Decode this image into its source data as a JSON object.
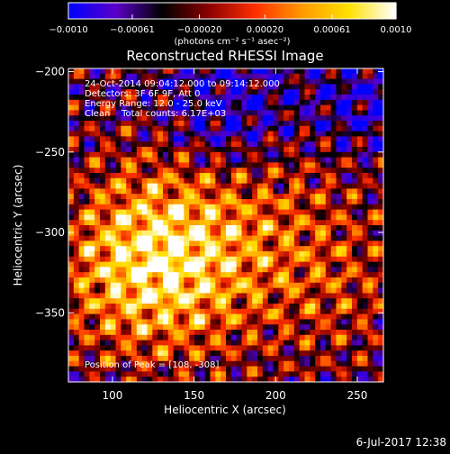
{
  "chart_data": {
    "type": "heatmap",
    "title": "Reconstructed RHESSI Image",
    "xlabel": "Heliocentric X (arcsec)",
    "ylabel": "Heliocentric Y (arcsec)",
    "xlim": [
      73,
      266
    ],
    "ylim": [
      -393,
      -198
    ],
    "x_ticks": [
      100,
      150,
      200,
      250
    ],
    "y_ticks": [
      -200,
      -250,
      -300,
      -350
    ],
    "colorbar": {
      "range": [
        -0.001,
        0.001
      ],
      "ticks": [
        -0.001,
        -0.00061,
        -0.0002,
        0.0002,
        0.00061,
        0.001
      ],
      "tick_labels": [
        "−0.0010",
        "−0.00061",
        "−0.00020",
        "0.00020",
        "0.00061",
        "0.0010"
      ],
      "unit_label": "(photons cm⁻² s⁻¹ asec⁻²)",
      "colormap": [
        "#0000ff",
        "#5a00c8",
        "#000000",
        "#8c0000",
        "#ff3000",
        "#ff9a00",
        "#ffe000",
        "#ffffff"
      ]
    },
    "annotations": [
      "24-Oct-2014 09:04:12.000 to 09:14:12.000",
      "Detectors: 3F 6F 9F, Att 0",
      "Energy Range: 12.0 - 25.0 keV",
      "Clean    Total counts: 6.17E+03"
    ],
    "peak_label": "Position of Peak = [108, -308]",
    "peak": [
      108,
      -308
    ]
  },
  "timestamp": "6-Jul-2017 12:38"
}
